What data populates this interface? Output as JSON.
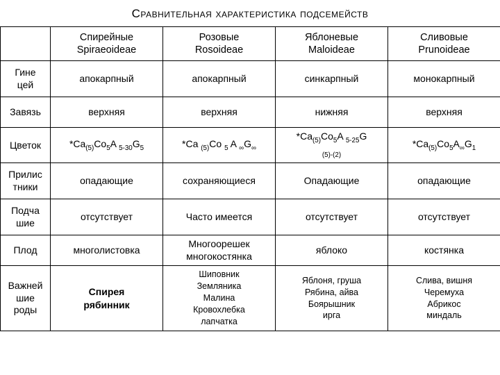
{
  "title": "Сравнительная характеристика подсемейств",
  "columns": [
    {
      "name": "Спирейные",
      "latin": "Spiraeoideae"
    },
    {
      "name": "Розовые",
      "latin": "Rosoideae"
    },
    {
      "name": "Яблоневые",
      "latin": "Maloideae"
    },
    {
      "name": "Сливовые",
      "latin": "Prunoideae"
    }
  ],
  "rows": {
    "gynoecium": {
      "label": "Гине\nцей",
      "cells": [
        "апокарпный",
        "апокарпный",
        "синкарпный",
        "монокарпный"
      ]
    },
    "ovary": {
      "label": "Завязь",
      "cells": [
        "верхняя",
        "верхняя",
        "нижняя",
        "верхняя"
      ]
    },
    "flower": {
      "label": "Цветок",
      "cells": [
        "*Ca<sub>(5)</sub>Co<sub>5</sub>A <sub>5-30</sub>G<sub>5</sub>",
        "*Ca <sub>(5)</sub>Co <sub>5</sub>  A <sub>∞</sub>G<sub>∞</sub>",
        "*Ca<sub>(5)</sub>Co<sub>5</sub>A <sub>5-25</sub>G<br><sub>(5)-(2)</sub>",
        "*Ca<sub>(5)</sub>Co<sub>5</sub>A<sub>∞</sub>G<sub>1</sub>"
      ]
    },
    "stipules": {
      "label": "Прилис\nтники",
      "cells": [
        "опадающие",
        "сохраняющиеся",
        "Опадающие",
        "опадающие"
      ]
    },
    "hypanthium": {
      "label": "Подча\nшие",
      "cells": [
        "отсутствует",
        "Часто имеется",
        "отсутствует",
        "отсутствует"
      ]
    },
    "fruit": {
      "label": "Плод",
      "cells": [
        "многолистовка",
        "Многоорешек\nмногокостянка",
        "яблоко",
        "костянка"
      ]
    },
    "genera": {
      "label": "Важней\nшие\nроды",
      "cells": [
        "Спирея\nрябинник",
        "Шиповник\nЗемляника\nМалина\nКровохлебка\nлапчатка",
        "Яблоня, груша\nРябина, айва\nБоярышник\nирга",
        "Слива, вишня\nЧеремуха\nАбрикос\nминдаль"
      ]
    }
  },
  "style": {
    "title_fontsize": 17,
    "cell_fontsize": 14,
    "genera_fontsize": 12.5,
    "border_color": "#000000",
    "background_color": "#ffffff",
    "text_color": "#000000"
  }
}
